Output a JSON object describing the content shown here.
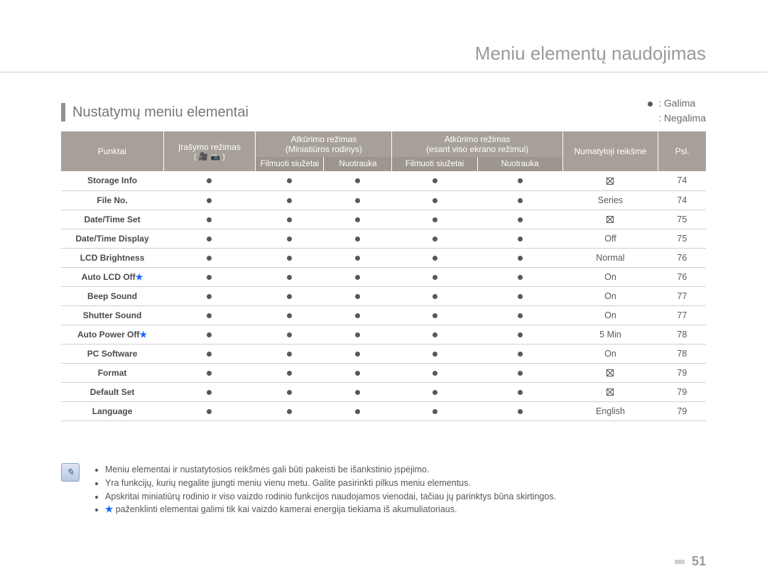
{
  "page": {
    "title": "Meniu elementų naudojimas",
    "number": "51"
  },
  "section": {
    "title": "Nustatymų meniu elementai"
  },
  "legend": {
    "available": ": Galima",
    "unavailable": ": Negalima"
  },
  "columns": {
    "punktai": "Punktai",
    "irasymo_line1": "Įrašymo režimas",
    "irasymo_icons": "( 🎥 📷 )",
    "atk1_line1": "Atkūrimo režimas",
    "atk1_line2": "(Miniatiūros rodinys)",
    "atk2_line1": "Atkūrimo režimas",
    "atk2_line2": "(esant viso ekrano režimui)",
    "default": "Numatytoji reikšmė",
    "psl": "Psl.",
    "filmuoti": "Filmuoti siužetai",
    "nuotrauka": "Nuotrauka"
  },
  "rows": [
    {
      "label": "Storage Info",
      "star": false,
      "c": [
        "dot",
        "dot",
        "dot",
        "dot",
        "dot"
      ],
      "def_type": "box",
      "def_text": "",
      "psl": "74"
    },
    {
      "label": "File No.",
      "star": false,
      "c": [
        "dot",
        "dot",
        "dot",
        "dot",
        "dot"
      ],
      "def_type": "text",
      "def_text": "Series",
      "psl": "74"
    },
    {
      "label": "Date/Time Set",
      "star": false,
      "c": [
        "dot",
        "dot",
        "dot",
        "dot",
        "dot"
      ],
      "def_type": "box",
      "def_text": "",
      "psl": "75"
    },
    {
      "label": "Date/Time Display",
      "star": false,
      "c": [
        "dot",
        "dot",
        "dot",
        "dot",
        "dot"
      ],
      "def_type": "text",
      "def_text": "Off",
      "psl": "75"
    },
    {
      "label": "LCD Brightness",
      "star": false,
      "c": [
        "dot",
        "dot",
        "dot",
        "dot",
        "dot"
      ],
      "def_type": "text",
      "def_text": "Normal",
      "psl": "76"
    },
    {
      "label": "Auto LCD Off",
      "star": true,
      "c": [
        "dot",
        "dot",
        "dot",
        "dot",
        "dot"
      ],
      "def_type": "text",
      "def_text": "On",
      "psl": "76"
    },
    {
      "label": "Beep Sound",
      "star": false,
      "c": [
        "dot",
        "dot",
        "dot",
        "dot",
        "dot"
      ],
      "def_type": "text",
      "def_text": "On",
      "psl": "77"
    },
    {
      "label": "Shutter Sound",
      "star": false,
      "c": [
        "dot",
        "dot",
        "dot",
        "dot",
        "dot"
      ],
      "def_type": "text",
      "def_text": "On",
      "psl": "77"
    },
    {
      "label": "Auto Power Off",
      "star": true,
      "c": [
        "dot",
        "dot",
        "dot",
        "dot",
        "dot"
      ],
      "def_type": "text",
      "def_text": "5 Min",
      "psl": "78"
    },
    {
      "label": "PC Software",
      "star": false,
      "c": [
        "dot",
        "dot",
        "dot",
        "dot",
        "dot"
      ],
      "def_type": "text",
      "def_text": "On",
      "psl": "78"
    },
    {
      "label": "Format",
      "star": false,
      "c": [
        "dot",
        "dot",
        "dot",
        "dot",
        "dot"
      ],
      "def_type": "box",
      "def_text": "",
      "psl": "79"
    },
    {
      "label": "Default Set",
      "star": false,
      "c": [
        "dot",
        "dot",
        "dot",
        "dot",
        "dot"
      ],
      "def_type": "box",
      "def_text": "",
      "psl": "79"
    },
    {
      "label": "Language",
      "star": false,
      "c": [
        "dot",
        "dot",
        "dot",
        "dot",
        "dot"
      ],
      "def_type": "text",
      "def_text": "English",
      "psl": "79"
    }
  ],
  "notes": [
    "Meniu elementai ir nustatytosios reikšmės gali būti pakeisti be išankstinio įspėjimo.",
    "Yra funkcijų, kurių negalite įjungti meniu vienu metu. Galite pasirinkti pilkus meniu elementus.",
    "Apskritai miniatiūrų rodinio ir viso vaizdo rodinio funkcijos naudojamos vienodai, tačiau jų parinktys būna skirtingos.",
    "★ paženklinti elementai galimi tik kai vaizdo kamerai energija tiekiama iš akumuliatoriaus."
  ],
  "colors": {
    "header_bg": "#a7a099",
    "subheader_bg": "#9d968f",
    "row_border": "#d0d0d0",
    "text": "#5a5a5a",
    "star": "#1368ff"
  }
}
